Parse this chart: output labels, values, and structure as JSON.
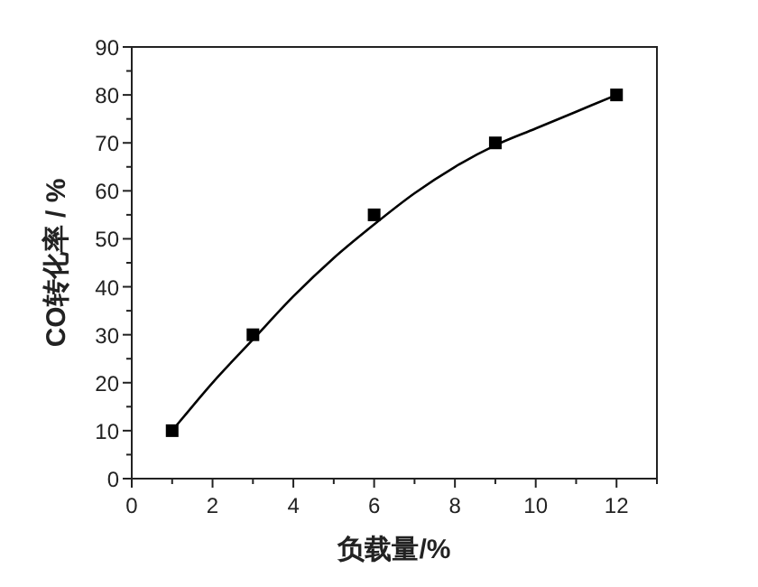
{
  "chart_data": {
    "type": "scatter",
    "xlabel": "负载量/%",
    "ylabel": "CO转化率 / %",
    "xlim": [
      0,
      13
    ],
    "ylim": [
      0,
      90
    ],
    "xticks": [
      0,
      {
        "value": 1,
        "label": null
      },
      2,
      {
        "value": 3,
        "label": null
      },
      4,
      {
        "value": 5,
        "label": null
      },
      6,
      {
        "value": 7,
        "label": null
      },
      8,
      {
        "value": 9,
        "label": null
      },
      10,
      {
        "value": 11,
        "label": null
      },
      12,
      {
        "value": 13,
        "label": null
      }
    ],
    "yticks": [
      0,
      {
        "value": 5,
        "label": null
      },
      10,
      {
        "value": 15,
        "label": null
      },
      20,
      {
        "value": 25,
        "label": null
      },
      30,
      {
        "value": 35,
        "label": null
      },
      40,
      {
        "value": 45,
        "label": null
      },
      50,
      {
        "value": 55,
        "label": null
      },
      60,
      {
        "value": 65,
        "label": null
      },
      70,
      {
        "value": 75,
        "label": null
      },
      80,
      {
        "value": 85,
        "label": null
      },
      90
    ],
    "grid": false,
    "series": [
      {
        "marker": "square",
        "color": "#000000",
        "x": [
          1,
          3,
          6,
          9,
          12
        ],
        "values": [
          10,
          30,
          55,
          70,
          80
        ]
      },
      {
        "type": "line",
        "marker": "none",
        "line_style": "solid",
        "color": "#000000",
        "x": [
          1,
          2,
          3,
          4,
          5,
          6,
          7,
          8,
          9,
          10,
          11,
          12
        ],
        "values": [
          10,
          20,
          29,
          38,
          46,
          53,
          59.5,
          65,
          69.5,
          73,
          76.5,
          80
        ]
      }
    ]
  }
}
